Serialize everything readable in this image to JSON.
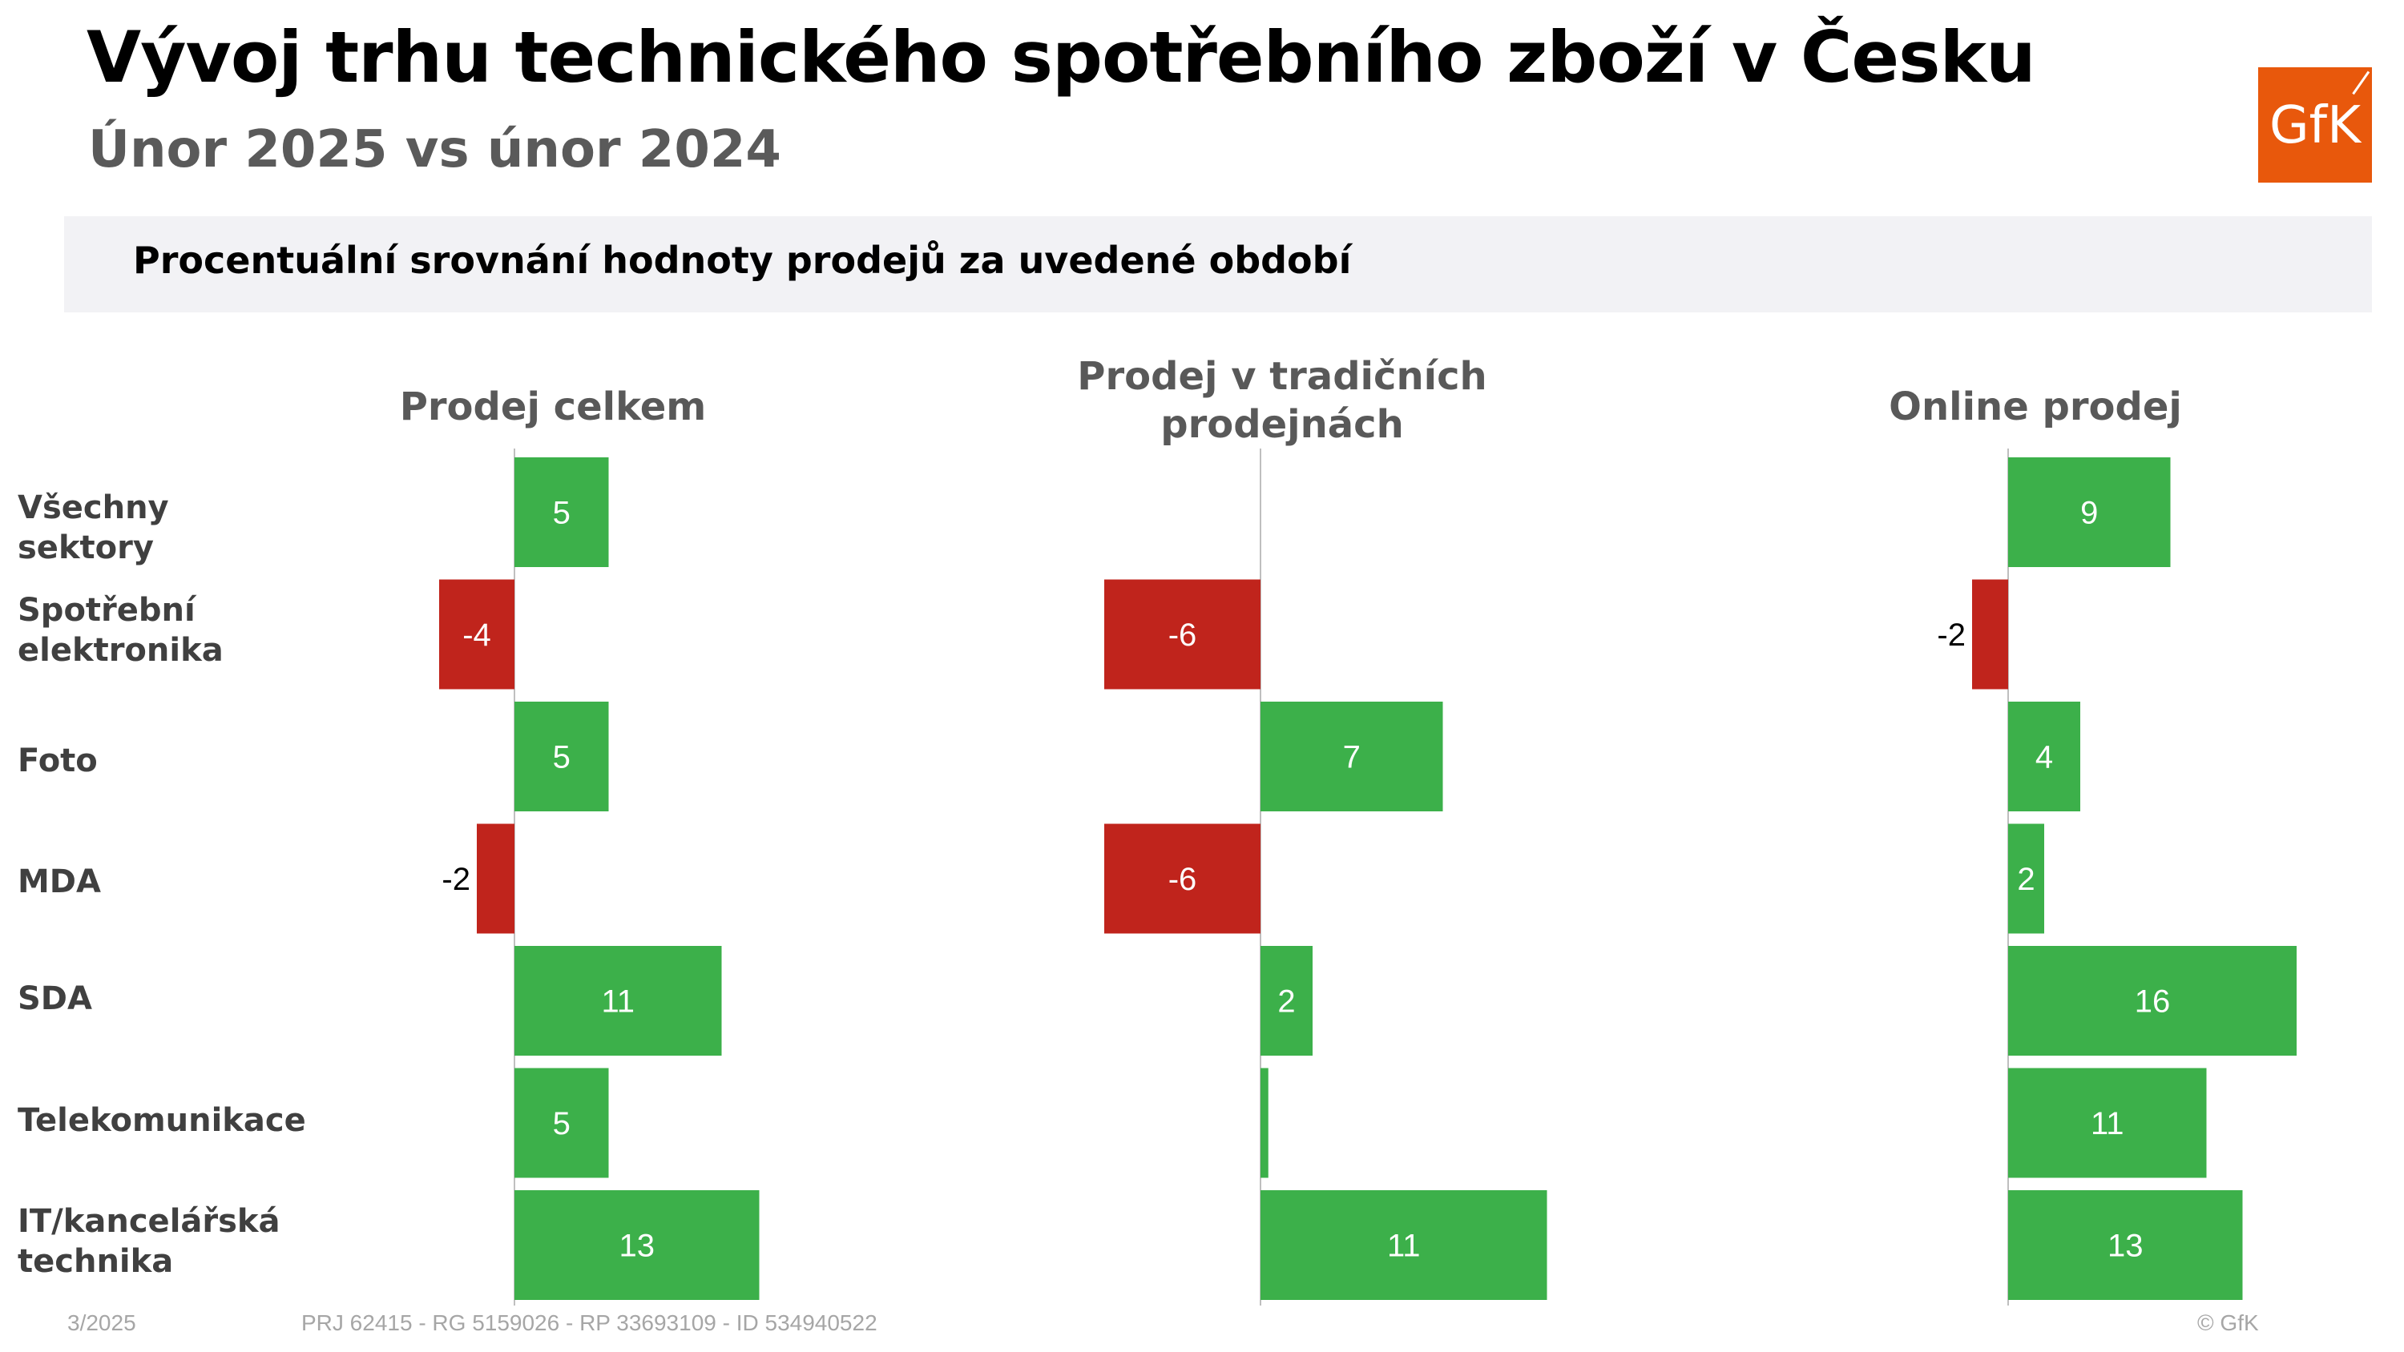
{
  "header": {
    "title": "Vývoj trhu technického spotřebního zboží v Česku",
    "subtitle": "Únor 2025 vs únor 2024",
    "band_label": "Procentuální srovnání hodnoty prodejů za uvedené období",
    "logo_text": "GfK"
  },
  "colors": {
    "positive": "#3cb04a",
    "negative": "#c0241c",
    "logo": "#e8580c",
    "axis": "#bfbfbf"
  },
  "chart_data": {
    "type": "bar",
    "orientation": "horizontal",
    "categories": [
      "Všechny sektory",
      "Spotřební elektronika",
      "Foto",
      "MDA",
      "SDA",
      "Telekomunikace",
      "IT/kancelářská technika"
    ],
    "panels": [
      {
        "title": "Prodej celkem",
        "values": [
          5,
          -4,
          5,
          -2,
          11,
          5,
          13
        ],
        "labels": [
          "5",
          "-4",
          "5",
          "-2",
          "11",
          "5",
          "13"
        ]
      },
      {
        "title": "Prodej v tradičních prodejnách",
        "values": [
          0,
          -6,
          7,
          -6,
          2,
          0.3,
          11
        ],
        "labels": [
          "",
          "-6",
          "7",
          "-6",
          "2",
          "",
          "11"
        ]
      },
      {
        "title": "Online prodej",
        "values": [
          9,
          -2,
          4,
          2,
          16,
          11,
          13
        ],
        "labels": [
          "9",
          "-2",
          "4",
          "2",
          "16",
          "11",
          "13"
        ]
      }
    ],
    "grid": false,
    "legend": "none"
  },
  "footer": {
    "date": "3/2025",
    "project": "PRJ 62415 - RG 5159026 - RP 33693109 - ID 534940522",
    "copyright": "© GfK"
  }
}
